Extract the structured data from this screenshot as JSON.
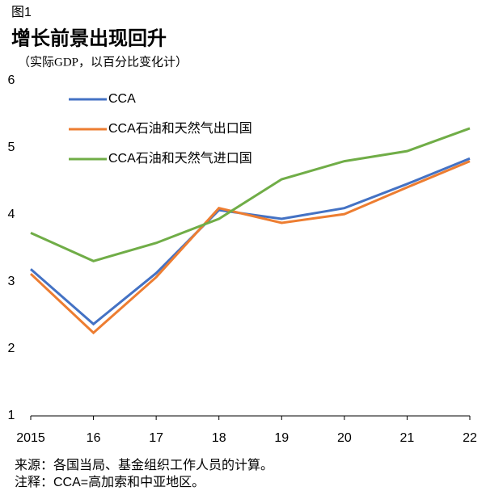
{
  "chart_data": {
    "type": "line",
    "figure_label": "图1",
    "title": "增长前景出现回升",
    "subtitle": "（实际GDP，以百分比变化计）",
    "categories": [
      "2015",
      "16",
      "17",
      "18",
      "19",
      "20",
      "21",
      "22"
    ],
    "series": [
      {
        "name": "CCA",
        "color": "#4472c4",
        "values": [
          3.19,
          2.37,
          3.13,
          4.07,
          3.94,
          4.1,
          4.46,
          4.84
        ]
      },
      {
        "name": "CCA石油和天然气出口国",
        "color": "#ed7d31",
        "values": [
          3.12,
          2.24,
          3.07,
          4.1,
          3.88,
          4.01,
          4.41,
          4.8
        ]
      },
      {
        "name": "CCA石油和天然气进口国",
        "color": "#70ad47",
        "values": [
          3.73,
          3.31,
          3.58,
          3.94,
          4.53,
          4.8,
          4.95,
          5.29
        ]
      }
    ],
    "ylim": [
      1,
      6
    ],
    "yticks": [
      1,
      2,
      3,
      4,
      5,
      6
    ],
    "grid": false,
    "notes": [
      "来源：各国当局、基金组织工作人员的计算。",
      "注释：CCA=高加索和中亚地区。"
    ]
  }
}
